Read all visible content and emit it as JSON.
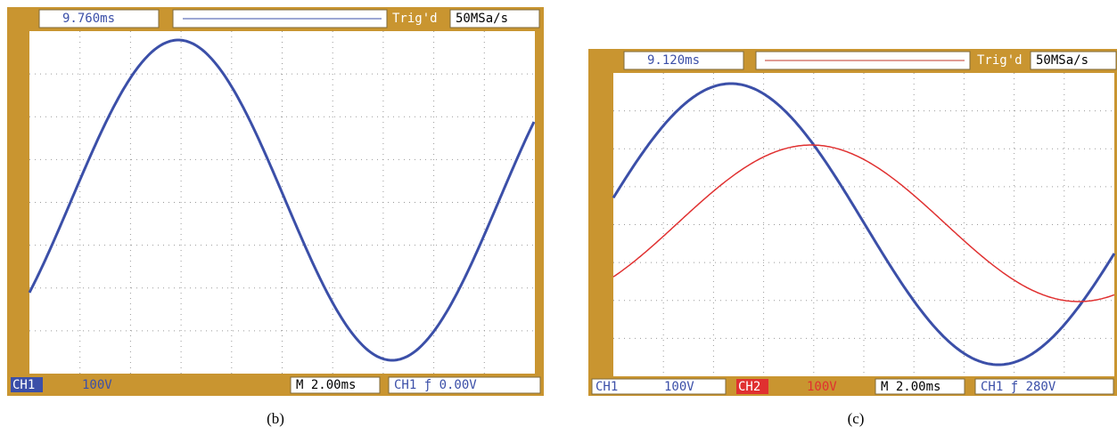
{
  "panels": [
    {
      "caption": "(b)",
      "delay": "9.760ms",
      "trigger_status": "Trig'd",
      "sample_rate": "50MSa/s",
      "channels": [
        {
          "name": "CH1",
          "scale": "100V"
        }
      ],
      "timebase": "M 2.00ms",
      "trigger_level": "CH1 ƒ 0.00V"
    },
    {
      "caption": "(c)",
      "delay": "9.120ms",
      "trigger_status": "Trig'd",
      "sample_rate": "50MSa/s",
      "channels": [
        {
          "name": "CH1",
          "scale": "100V"
        },
        {
          "name": "CH2",
          "scale": "100V"
        }
      ],
      "timebase": "M 2.00ms",
      "trigger_level": "CH1 ƒ 280V"
    }
  ]
}
